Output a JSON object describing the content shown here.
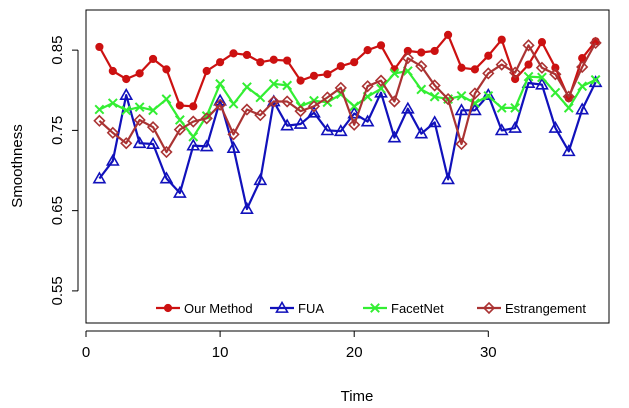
{
  "chart_data": {
    "type": "line",
    "title": "",
    "xlabel": "Time",
    "ylabel": "Smoothness",
    "xlim": [
      0,
      39
    ],
    "ylim": [
      0.51,
      0.9
    ],
    "xticks": [
      0,
      10,
      20,
      30
    ],
    "yticks": [
      0.55,
      0.65,
      0.75,
      0.85
    ],
    "grid": false,
    "legend": "bottom-center",
    "x": [
      1,
      2,
      3,
      4,
      5,
      6,
      7,
      8,
      9,
      10,
      11,
      12,
      13,
      14,
      15,
      16,
      17,
      18,
      19,
      20,
      21,
      22,
      23,
      24,
      25,
      26,
      27,
      28,
      29,
      30,
      31,
      32,
      33,
      34,
      35,
      36,
      37,
      38
    ],
    "series": [
      {
        "name": "Our Method",
        "color": "#cc1111",
        "marker": "dot",
        "values": [
          0.854,
          0.824,
          0.814,
          0.821,
          0.839,
          0.826,
          0.781,
          0.78,
          0.824,
          0.835,
          0.846,
          0.844,
          0.835,
          0.838,
          0.837,
          0.812,
          0.818,
          0.82,
          0.83,
          0.835,
          0.85,
          0.856,
          0.826,
          0.849,
          0.847,
          0.849,
          0.869,
          0.828,
          0.826,
          0.843,
          0.863,
          0.814,
          0.832,
          0.86,
          0.828,
          0.79,
          0.84,
          0.861
        ]
      },
      {
        "name": "FUA",
        "color": "#1111bb",
        "marker": "triangle",
        "values": [
          0.69,
          0.712,
          0.794,
          0.734,
          0.733,
          0.69,
          0.672,
          0.731,
          0.73,
          0.787,
          0.728,
          0.652,
          0.688,
          0.786,
          0.756,
          0.758,
          0.772,
          0.75,
          0.749,
          0.771,
          0.761,
          0.797,
          0.741,
          0.777,
          0.746,
          0.76,
          0.689,
          0.775,
          0.775,
          0.794,
          0.75,
          0.753,
          0.809,
          0.807,
          0.753,
          0.724,
          0.776,
          0.81
        ]
      },
      {
        "name": "FacetNet",
        "color": "#33ee33",
        "marker": "x",
        "values": [
          0.776,
          0.784,
          0.775,
          0.779,
          0.775,
          0.789,
          0.763,
          0.742,
          0.768,
          0.808,
          0.783,
          0.804,
          0.791,
          0.808,
          0.806,
          0.78,
          0.787,
          0.785,
          0.795,
          0.78,
          0.792,
          0.802,
          0.821,
          0.824,
          0.801,
          0.792,
          0.789,
          0.793,
          0.784,
          0.793,
          0.778,
          0.778,
          0.817,
          0.816,
          0.797,
          0.778,
          0.805,
          0.813
        ]
      },
      {
        "name": "Estrangement",
        "color": "#aa3333",
        "marker": "diamond",
        "values": [
          0.762,
          0.747,
          0.734,
          0.763,
          0.754,
          0.723,
          0.751,
          0.761,
          0.765,
          0.782,
          0.745,
          0.776,
          0.769,
          0.786,
          0.786,
          0.774,
          0.78,
          0.791,
          0.803,
          0.757,
          0.805,
          0.812,
          0.786,
          0.84,
          0.83,
          0.806,
          0.789,
          0.733,
          0.796,
          0.821,
          0.832,
          0.822,
          0.856,
          0.828,
          0.82,
          0.792,
          0.829,
          0.859
        ]
      }
    ]
  }
}
